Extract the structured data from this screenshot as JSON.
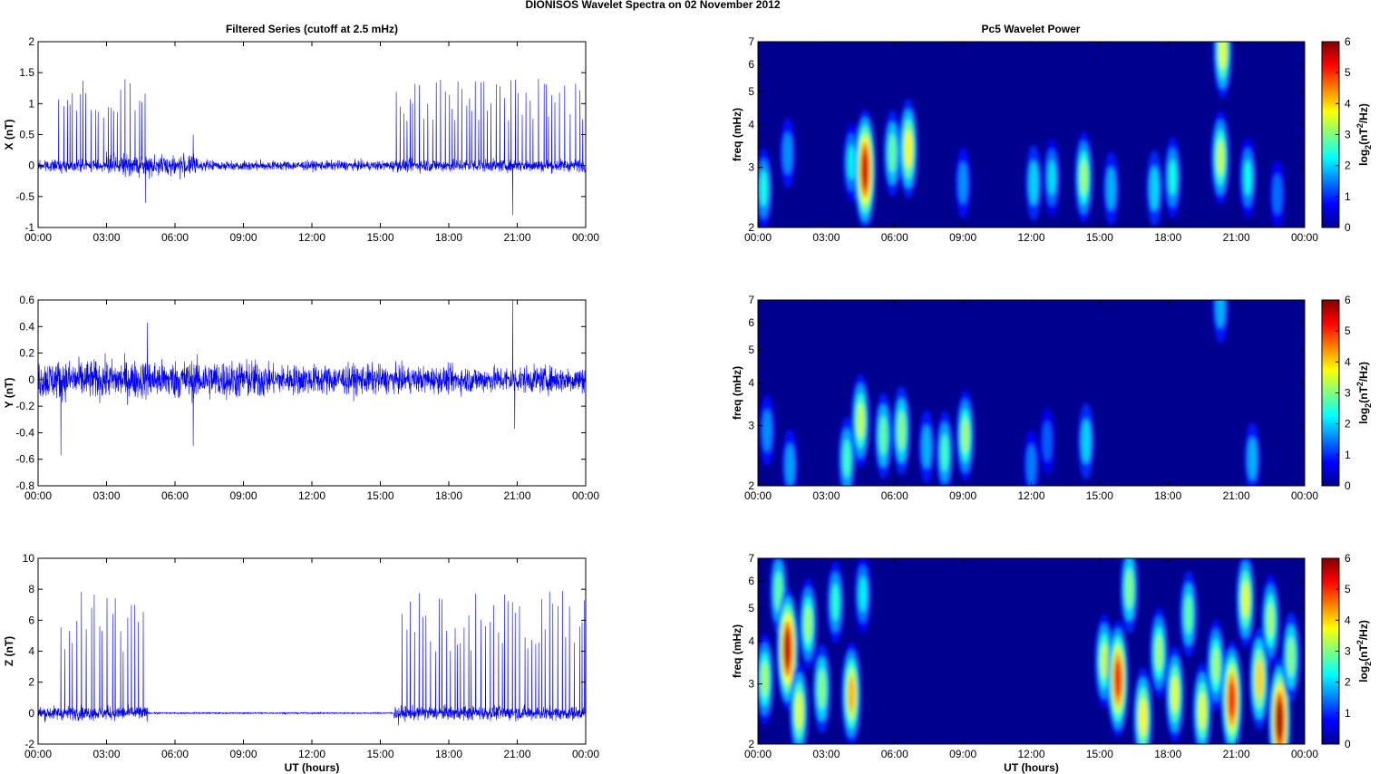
{
  "page": {
    "suptitle": "DIONISOS Wavelet Spectra on 02 November  2012",
    "left_title": "Filtered Series (cutoff at 2.5 mHz)",
    "right_title": "Pc5 Wavelet Power",
    "xlabel": "UT (hours)",
    "freq_label": "freq (mHz)",
    "colorbar_label": "log2(nT2/Hz)",
    "colorbar_label_parts": {
      "pre": "log",
      "sub": "2",
      "mid": "(nT",
      "sup": "2",
      "post": "/Hz)"
    }
  },
  "colors": {
    "trace": "#0000ff",
    "spectrum_background": "#00008f",
    "axes": "#000000"
  },
  "chart_data": [
    {
      "type": "line",
      "panel": "x-series",
      "ylabel": "X (nT)",
      "xlim": [
        "00:00",
        "24:00"
      ],
      "ylim": [
        -1,
        2
      ],
      "xticks": [
        "00:00",
        "03:00",
        "06:00",
        "09:00",
        "12:00",
        "15:00",
        "18:00",
        "21:00",
        "00:00"
      ],
      "yticks": [
        "-1",
        "-0.5",
        "0",
        "0.5",
        "1",
        "1.5",
        "2"
      ],
      "noise_amplitude": [
        {
          "from_h": 0,
          "to_h": 3,
          "amp": 0.08
        },
        {
          "from_h": 3,
          "to_h": 7,
          "amp": 0.15
        },
        {
          "from_h": 7,
          "to_h": 15.5,
          "amp": 0.07
        },
        {
          "from_h": 15.5,
          "to_h": 24,
          "amp": 0.09
        }
      ],
      "spike_regions": [
        {
          "from_h": 0.9,
          "to_h": 4.7,
          "peak": 1.3
        },
        {
          "from_h": 15.7,
          "to_h": 24,
          "peak": 1.3
        }
      ],
      "excursions": [
        {
          "t_h": 4.7,
          "value": -0.6
        },
        {
          "t_h": 20.8,
          "value": -0.8
        },
        {
          "t_h": 6.8,
          "value": 0.5
        }
      ]
    },
    {
      "type": "line",
      "panel": "y-series",
      "ylabel": "Y (nT)",
      "xlim": [
        "00:00",
        "24:00"
      ],
      "ylim": [
        -0.8,
        0.6
      ],
      "xticks": [
        "00:00",
        "03:00",
        "06:00",
        "09:00",
        "12:00",
        "15:00",
        "18:00",
        "21:00",
        "00:00"
      ],
      "yticks": [
        "-0.8",
        "-0.6",
        "-0.4",
        "-0.2",
        "0",
        "0.2",
        "0.4",
        "0.6"
      ],
      "noise_amplitude": [
        {
          "from_h": 0,
          "to_h": 10,
          "amp": 0.13
        },
        {
          "from_h": 10,
          "to_h": 15,
          "amp": 0.1
        },
        {
          "from_h": 15,
          "to_h": 24,
          "amp": 0.09
        }
      ],
      "spike_regions": [],
      "excursions": [
        {
          "t_h": 1.0,
          "value": -0.57
        },
        {
          "t_h": 4.8,
          "value": 0.43
        },
        {
          "t_h": 6.8,
          "value": -0.5
        },
        {
          "t_h": 20.8,
          "value": 0.6
        },
        {
          "t_h": 20.9,
          "value": -0.37
        }
      ]
    },
    {
      "type": "line",
      "panel": "z-series",
      "ylabel": "Z (nT)",
      "xlabel": "UT (hours)",
      "xlim": [
        "00:00",
        "24:00"
      ],
      "ylim": [
        -2,
        10
      ],
      "xticks": [
        "00:00",
        "03:00",
        "06:00",
        "09:00",
        "12:00",
        "15:00",
        "18:00",
        "21:00",
        "00:00"
      ],
      "yticks": [
        "-2",
        "0",
        "2",
        "4",
        "6",
        "8",
        "10"
      ],
      "noise_amplitude": [
        {
          "from_h": 0,
          "to_h": 4.8,
          "amp": 0.4
        },
        {
          "from_h": 4.8,
          "to_h": 15.6,
          "amp": 0.04
        },
        {
          "from_h": 15.6,
          "to_h": 24,
          "amp": 0.4
        }
      ],
      "spike_regions": [
        {
          "from_h": 1.0,
          "to_h": 4.8,
          "peak": 7.2
        },
        {
          "from_h": 15.8,
          "to_h": 24,
          "peak": 7.2
        }
      ],
      "excursions": [
        {
          "t_h": 15.8,
          "value": -0.8
        }
      ]
    },
    {
      "type": "heatmap",
      "panel": "x-wavelet",
      "ylabel": "freq (mHz)",
      "yscale": "log",
      "xlim": [
        "00:00",
        "24:00"
      ],
      "ylim": [
        2,
        7
      ],
      "xticks": [
        "00:00",
        "03:00",
        "06:00",
        "09:00",
        "12:00",
        "15:00",
        "18:00",
        "21:00",
        "00:00"
      ],
      "yticks": [
        "2",
        "3",
        "4",
        "5",
        "6",
        "7"
      ],
      "colorbar": {
        "range": [
          0,
          6
        ],
        "ticks": [
          "0",
          "1",
          "2",
          "3",
          "4",
          "5",
          "6"
        ]
      },
      "blobs": [
        {
          "t_h": 0.25,
          "f_mhz": 2.6,
          "power": 2.4
        },
        {
          "t_h": 1.3,
          "f_mhz": 3.3,
          "power": 1.6
        },
        {
          "t_h": 4.1,
          "f_mhz": 3.1,
          "power": 2.2
        },
        {
          "t_h": 4.7,
          "f_mhz": 2.95,
          "power": 5.5
        },
        {
          "t_h": 5.9,
          "f_mhz": 3.3,
          "power": 2.8
        },
        {
          "t_h": 6.6,
          "f_mhz": 3.4,
          "power": 3.8
        },
        {
          "t_h": 9.0,
          "f_mhz": 2.7,
          "power": 1.6
        },
        {
          "t_h": 12.1,
          "f_mhz": 2.7,
          "power": 2.0
        },
        {
          "t_h": 12.9,
          "f_mhz": 2.8,
          "power": 2.1
        },
        {
          "t_h": 14.3,
          "f_mhz": 2.8,
          "power": 3.2
        },
        {
          "t_h": 15.5,
          "f_mhz": 2.6,
          "power": 1.8
        },
        {
          "t_h": 17.4,
          "f_mhz": 2.6,
          "power": 2.0
        },
        {
          "t_h": 18.2,
          "f_mhz": 2.8,
          "power": 2.4
        },
        {
          "t_h": 20.3,
          "f_mhz": 3.2,
          "power": 3.4
        },
        {
          "t_h": 20.4,
          "f_mhz": 6.6,
          "power": 3.6
        },
        {
          "t_h": 21.5,
          "f_mhz": 2.8,
          "power": 2.3
        },
        {
          "t_h": 22.8,
          "f_mhz": 2.5,
          "power": 1.4
        }
      ]
    },
    {
      "type": "heatmap",
      "panel": "y-wavelet",
      "ylabel": "freq (mHz)",
      "yscale": "log",
      "xlim": [
        "00:00",
        "24:00"
      ],
      "ylim": [
        2,
        7
      ],
      "xticks": [
        "00:00",
        "03:00",
        "06:00",
        "09:00",
        "12:00",
        "15:00",
        "18:00",
        "21:00",
        "00:00"
      ],
      "yticks": [
        "2",
        "3",
        "4",
        "5",
        "6",
        "7"
      ],
      "colorbar": {
        "range": [
          0,
          6
        ],
        "ticks": [
          "0",
          "1",
          "2",
          "3",
          "4",
          "5",
          "6"
        ]
      },
      "blobs": [
        {
          "t_h": 0.4,
          "f_mhz": 2.9,
          "power": 1.6
        },
        {
          "t_h": 1.4,
          "f_mhz": 2.3,
          "power": 1.7
        },
        {
          "t_h": 3.9,
          "f_mhz": 2.4,
          "power": 2.6
        },
        {
          "t_h": 4.5,
          "f_mhz": 3.1,
          "power": 3.4
        },
        {
          "t_h": 5.5,
          "f_mhz": 2.8,
          "power": 2.8
        },
        {
          "t_h": 6.3,
          "f_mhz": 2.9,
          "power": 3.0
        },
        {
          "t_h": 7.4,
          "f_mhz": 2.6,
          "power": 1.8
        },
        {
          "t_h": 8.2,
          "f_mhz": 2.5,
          "power": 2.6
        },
        {
          "t_h": 9.1,
          "f_mhz": 2.8,
          "power": 3.2
        },
        {
          "t_h": 12.0,
          "f_mhz": 2.3,
          "power": 1.5
        },
        {
          "t_h": 12.7,
          "f_mhz": 2.7,
          "power": 1.3
        },
        {
          "t_h": 14.4,
          "f_mhz": 2.7,
          "power": 2.0
        },
        {
          "t_h": 20.3,
          "f_mhz": 6.7,
          "power": 1.8
        },
        {
          "t_h": 21.7,
          "f_mhz": 2.4,
          "power": 1.8
        }
      ]
    },
    {
      "type": "heatmap",
      "panel": "z-wavelet",
      "ylabel": "freq (mHz)",
      "xlabel": "UT (hours)",
      "yscale": "log",
      "xlim": [
        "00:00",
        "24:00"
      ],
      "ylim": [
        2,
        7
      ],
      "xticks": [
        "00:00",
        "03:00",
        "06:00",
        "09:00",
        "12:00",
        "15:00",
        "18:00",
        "21:00",
        "00:00"
      ],
      "yticks": [
        "2",
        "3",
        "4",
        "5",
        "6",
        "7"
      ],
      "colorbar": {
        "range": [
          0,
          6
        ],
        "ticks": [
          "0",
          "1",
          "2",
          "3",
          "4",
          "5",
          "6"
        ]
      },
      "blobs": [
        {
          "t_h": 0.3,
          "f_mhz": 3.1,
          "power": 3.2
        },
        {
          "t_h": 0.9,
          "f_mhz": 5.6,
          "power": 2.8
        },
        {
          "t_h": 1.3,
          "f_mhz": 3.8,
          "power": 5.6
        },
        {
          "t_h": 1.8,
          "f_mhz": 2.5,
          "power": 3.6
        },
        {
          "t_h": 2.2,
          "f_mhz": 4.5,
          "power": 3.2
        },
        {
          "t_h": 2.8,
          "f_mhz": 2.9,
          "power": 3.0
        },
        {
          "t_h": 3.4,
          "f_mhz": 5.2,
          "power": 2.5
        },
        {
          "t_h": 4.1,
          "f_mhz": 2.8,
          "power": 4.2
        },
        {
          "t_h": 4.6,
          "f_mhz": 5.5,
          "power": 2.2
        },
        {
          "t_h": 15.2,
          "f_mhz": 3.5,
          "power": 3.4
        },
        {
          "t_h": 15.8,
          "f_mhz": 3.1,
          "power": 5.2
        },
        {
          "t_h": 16.3,
          "f_mhz": 5.7,
          "power": 3.0
        },
        {
          "t_h": 16.9,
          "f_mhz": 2.4,
          "power": 3.8
        },
        {
          "t_h": 17.6,
          "f_mhz": 3.7,
          "power": 3.2
        },
        {
          "t_h": 18.3,
          "f_mhz": 2.8,
          "power": 3.6
        },
        {
          "t_h": 18.9,
          "f_mhz": 4.8,
          "power": 2.8
        },
        {
          "t_h": 19.5,
          "f_mhz": 2.5,
          "power": 3.6
        },
        {
          "t_h": 20.1,
          "f_mhz": 3.4,
          "power": 3.2
        },
        {
          "t_h": 20.8,
          "f_mhz": 2.7,
          "power": 5.2
        },
        {
          "t_h": 21.4,
          "f_mhz": 5.3,
          "power": 3.6
        },
        {
          "t_h": 22.0,
          "f_mhz": 3.1,
          "power": 4.0
        },
        {
          "t_h": 22.5,
          "f_mhz": 4.6,
          "power": 3.2
        },
        {
          "t_h": 22.9,
          "f_mhz": 2.35,
          "power": 5.8
        },
        {
          "t_h": 23.4,
          "f_mhz": 3.6,
          "power": 3.0
        }
      ]
    }
  ]
}
